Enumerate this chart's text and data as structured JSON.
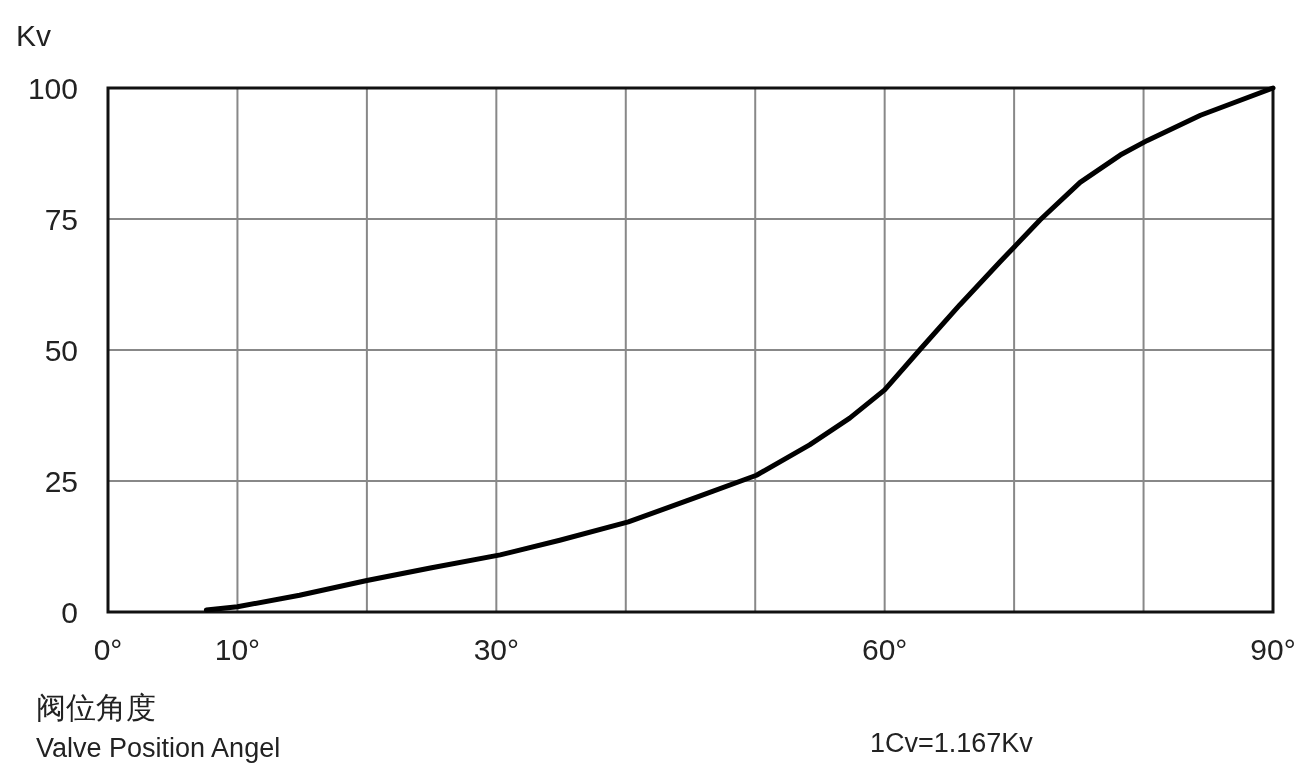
{
  "chart_data": {
    "type": "line",
    "ylabel": "Kv",
    "xlabel": "阀位角度",
    "annotations": [
      "Valve Position Angel",
      "1Cv=1.167Kv"
    ],
    "xlim": [
      0,
      90
    ],
    "ylim": [
      0,
      100
    ],
    "xticks": [
      {
        "value": 0,
        "label": "0°"
      },
      {
        "value": 10,
        "label": "10°"
      },
      {
        "value": 20,
        "label": null
      },
      {
        "value": 30,
        "label": "30°"
      },
      {
        "value": 40,
        "label": null
      },
      {
        "value": 50,
        "label": null
      },
      {
        "value": 60,
        "label": "60°"
      },
      {
        "value": 70,
        "label": null
      },
      {
        "value": 80,
        "label": null
      },
      {
        "value": 90,
        "label": "90°"
      }
    ],
    "yticks": [
      0,
      25,
      50,
      75,
      100
    ],
    "grid": true,
    "marker": "none",
    "line_style": "solid",
    "series": [
      {
        "color": "#000000",
        "x": [
          7.6,
          10,
          14.8,
          20,
          24.9,
          30.3,
          34.9,
          40.2,
          45.7,
          50.1,
          54.2,
          57.3,
          60,
          62.7,
          65.8,
          68.9,
          72,
          75.1,
          78.2,
          80.3,
          84.4,
          90
        ],
        "values": [
          0.4,
          1,
          3.2,
          6,
          8.4,
          10.9,
          13.7,
          17.2,
          22.1,
          26.1,
          31.9,
          37,
          42.4,
          50,
          58.6,
          66.8,
          74.8,
          82,
          87.2,
          90,
          94.8,
          100
        ]
      }
    ]
  }
}
